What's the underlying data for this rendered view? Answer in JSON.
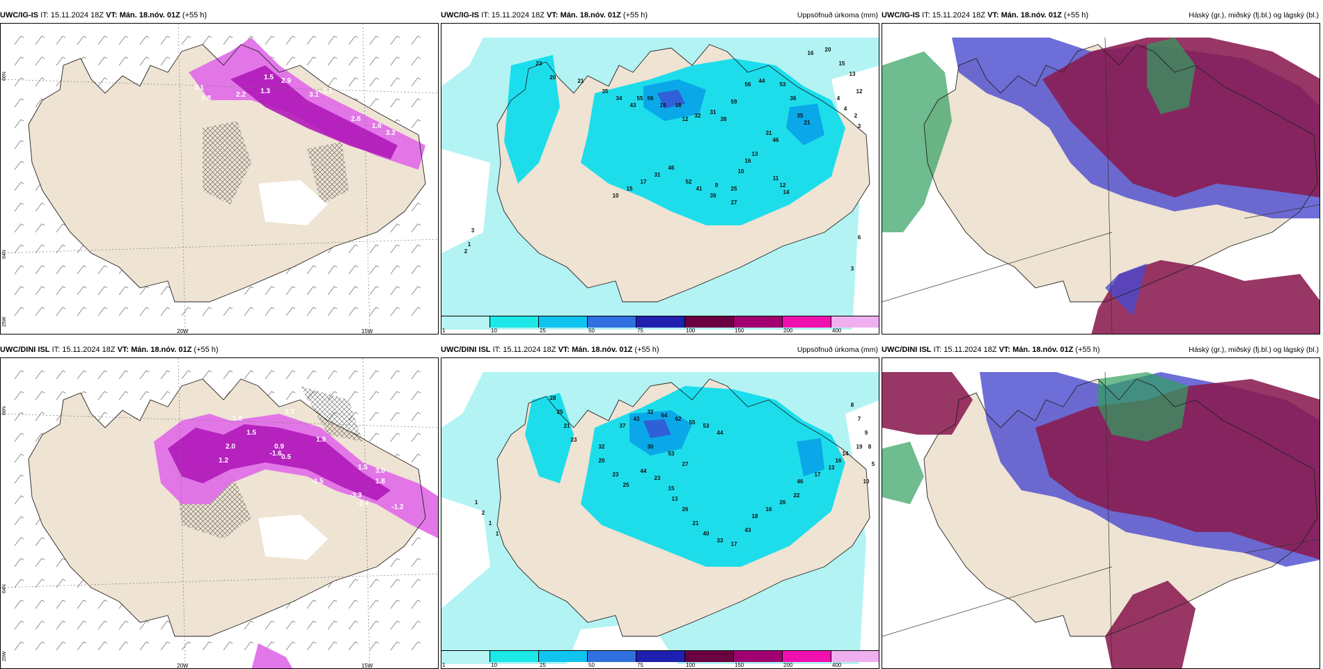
{
  "common": {
    "it_prefix": "IT:",
    "it_value": "15.11.2024 18Z",
    "vt_prefix": "VT:",
    "vt_value": "Mán. 18.nóv. 01Z",
    "lead": "(+55 h)"
  },
  "rows": [
    {
      "model": "UWC/IG-IS"
    },
    {
      "model": "UWC/DINI ISL"
    }
  ],
  "panel_right_titles": {
    "precip": "Uppsöfnuð úrkoma (mm)",
    "clouds": "Háský (gr.), miðský (fj.bl.) og lágský (bl.)"
  },
  "axis_labels": {
    "lat_66": "66N",
    "lat_64": "64N",
    "lon_25": "25W",
    "lon_20": "20W",
    "lon_15": "15W"
  },
  "legend": {
    "ticks": [
      "1",
      "10",
      "25",
      "50",
      "75",
      "100",
      "150",
      "200",
      "400"
    ],
    "colors": [
      "#b8f4f4",
      "#1ce8e8",
      "#10c4f0",
      "#3070e0",
      "#2020b0",
      "#6a0040",
      "#a00070",
      "#f010b0",
      "#f0b0f0"
    ]
  },
  "colors": {
    "land": "#efe3d3",
    "sea_precip": "#b3f3f3",
    "precip_mid": "#12dcec",
    "precip_hi": "#0aa8e8",
    "precip_max": "#3060d8",
    "magenta_light": "#e070e8",
    "magenta_dark": "#b01ab8",
    "cloud_high": "#8a1a50",
    "cloud_mid": "#4a4ad0",
    "cloud_low": "#30a060"
  },
  "wind_top": {
    "values": [
      "3.1",
      "2.8",
      "2.2",
      "1.3",
      "1.5",
      "2.9",
      "3.1",
      "1.5",
      "2.8",
      "1.6",
      "3.2"
    ]
  },
  "wind_bottom": {
    "values": [
      "1.8",
      "1.5",
      "2.3",
      "2.0",
      "1.9",
      "1.5",
      "3.0",
      "1.8",
      "-1.6",
      "-1.5",
      "-3.3",
      "-2.4",
      "-1.2",
      "0.5",
      "0.9",
      "1.2"
    ]
  },
  "precip_top": {
    "values": [
      "23",
      "20",
      "21",
      "35",
      "34",
      "43",
      "55",
      "56",
      "19",
      "18",
      "12",
      "32",
      "31",
      "38",
      "59",
      "56",
      "44",
      "53",
      "36",
      "35",
      "21",
      "31",
      "46",
      "13",
      "16",
      "10",
      "9",
      "25",
      "27",
      "39",
      "41",
      "52",
      "46",
      "31",
      "17",
      "15",
      "10",
      "11",
      "12",
      "14",
      "16",
      "20",
      "15",
      "13",
      "12",
      "4",
      "4",
      "2",
      "3",
      "3",
      "1",
      "2",
      "6",
      "3"
    ]
  },
  "precip_bottom": {
    "values": [
      "28",
      "25",
      "21",
      "23",
      "32",
      "37",
      "43",
      "32",
      "64",
      "62",
      "55",
      "53",
      "44",
      "20",
      "23",
      "25",
      "30",
      "53",
      "27",
      "44",
      "23",
      "15",
      "13",
      "26",
      "21",
      "40",
      "33",
      "17",
      "43",
      "18",
      "16",
      "26",
      "22",
      "46",
      "17",
      "13",
      "16",
      "14",
      "19",
      "10",
      "8",
      "7",
      "9",
      "8",
      "5",
      "1",
      "2",
      "1",
      "1"
    ]
  }
}
